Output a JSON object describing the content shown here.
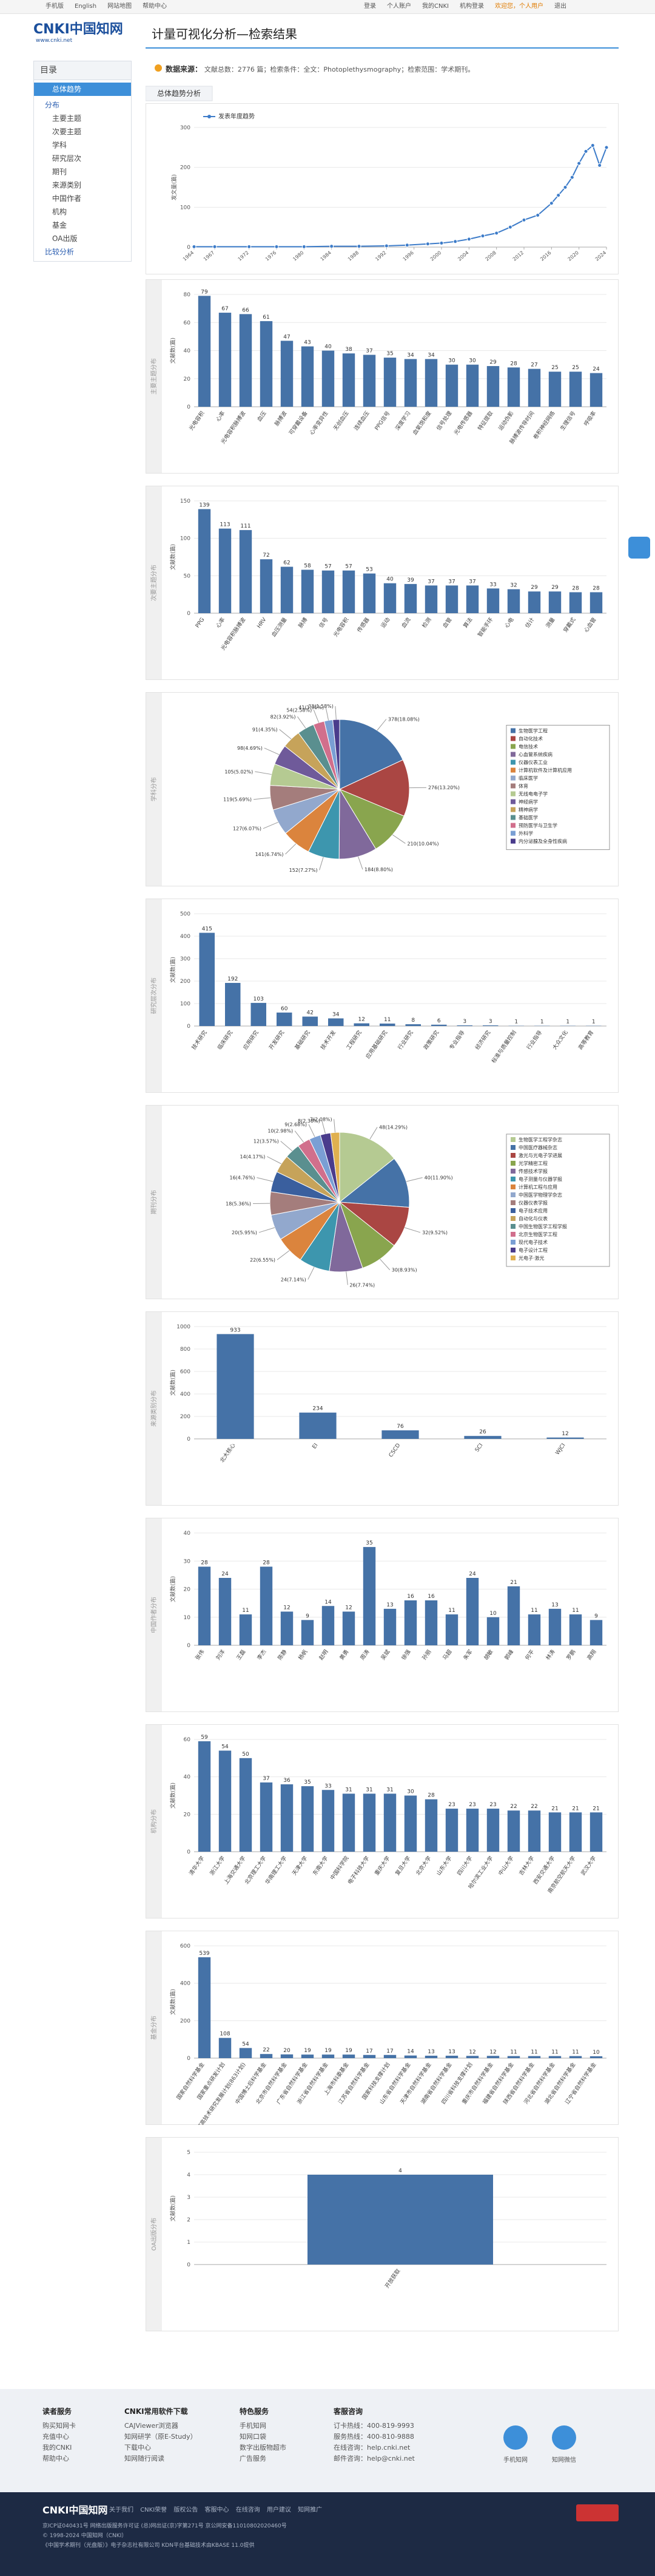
{
  "header": {
    "left_links": [
      "手机版",
      "English",
      "网站地图",
      "帮助中心"
    ],
    "right_links": [
      "登录",
      "个人账户",
      "我的CNKI",
      "机构登录",
      "欢迎您，个人用户",
      "退出"
    ],
    "logo": "CNKI中国知网",
    "logo_url": "www.cnki.net",
    "title": "计量可视化分析—检索结果"
  },
  "info": {
    "label": "数据来源：",
    "text": "文献总数：2776 篇；检索条件：全文：Photoplethysmography；检索范围：学术期刊。"
  },
  "sidebar": {
    "heading": "目录",
    "active": "总体趋势",
    "group": "分布",
    "items": [
      "主要主题",
      "次要主题",
      "学科",
      "研究层次",
      "期刊",
      "来源类别",
      "中国作者",
      "机构",
      "基金",
      "OA出版"
    ],
    "compare": "比较分析"
  },
  "chart_data": [
    {
      "type": "line",
      "title": "总体趋势分析",
      "y_label": "发文量(篇)",
      "series_name": "发表年度趋势",
      "color": "#3d7cc9",
      "x": [
        1964,
        1967,
        1972,
        1976,
        1980,
        1984,
        1988,
        1992,
        1995,
        1998,
        2000,
        2002,
        2004,
        2006,
        2008,
        2010,
        2012,
        2014,
        2016,
        2017,
        2018,
        2019,
        2020,
        2021,
        2022,
        2023,
        2024
      ],
      "values": [
        1,
        1,
        1,
        1,
        1,
        2,
        2,
        3,
        5,
        8,
        10,
        14,
        20,
        28,
        35,
        50,
        68,
        80,
        110,
        130,
        150,
        175,
        210,
        240,
        255,
        205,
        250
      ],
      "xlim": [
        1964,
        2024
      ],
      "xticks": [
        1964,
        1967,
        1972,
        1976,
        1980,
        1984,
        1988,
        1992,
        1996,
        2000,
        2004,
        2008,
        2012,
        2016,
        2020,
        2024
      ],
      "ylim": [
        0,
        300
      ],
      "yticks": [
        0,
        100,
        200,
        300
      ],
      "grid": true
    },
    {
      "type": "bar",
      "title": "主要主题分布",
      "y_label": "文献数(篇)",
      "color": "#4572a7",
      "categories": [
        "光电容积",
        "心率",
        "光电容积脉搏波",
        "血压",
        "脉搏波",
        "可穿戴设备",
        "心率变异性",
        "无创血压",
        "连续血压",
        "PPG信号",
        "深度学习",
        "血氧饱和度",
        "信号处理",
        "光电传感器",
        "特征提取",
        "运动伪影",
        "脉搏波传导时间",
        "卷积神经网络",
        "生理信号",
        "呼吸率"
      ],
      "values": [
        79,
        67,
        66,
        61,
        47,
        43,
        40,
        38,
        37,
        35,
        34,
        34,
        30,
        30,
        29,
        28,
        27,
        25,
        25,
        24
      ],
      "ylim": [
        0,
        80
      ],
      "yticks": [
        0,
        20,
        40,
        60,
        80
      ],
      "grid": true
    },
    {
      "type": "bar",
      "title": "次要主题分布",
      "y_label": "文献数(篇)",
      "color": "#4572a7",
      "categories": [
        "PPG",
        "心率",
        "光电容积脉搏波",
        "HRV",
        "血压测量",
        "脉搏",
        "信号",
        "光电容积",
        "传感器",
        "运动",
        "血流",
        "检测",
        "血管",
        "算法",
        "智能手环",
        "心电",
        "估计",
        "测量",
        "穿戴式",
        "心血管"
      ],
      "values": [
        139,
        113,
        111,
        72,
        62,
        58,
        57,
        57,
        53,
        40,
        39,
        37,
        37,
        37,
        33,
        32,
        29,
        29,
        28,
        28
      ],
      "ylim": [
        0,
        150
      ],
      "yticks": [
        0,
        50,
        100,
        150
      ],
      "grid": true
    },
    {
      "type": "pie",
      "title": "学科分布",
      "categories": [
        "生物医学工程",
        "自动化技术",
        "电信技术",
        "心血管系统疾病",
        "仪器仪表工业",
        "计算机软件及计算机应用",
        "临床医学",
        "体育",
        "无线电电子学",
        "神经病学",
        "精神病学",
        "基础医学",
        "预防医学与卫生学",
        "外科学",
        "内分泌腺及全身性疾病"
      ],
      "values": [
        378,
        276,
        210,
        184,
        152,
        141,
        127,
        119,
        105,
        98,
        91,
        82,
        54,
        41,
        33
      ],
      "value_labels": [
        "378(18.08%)",
        "276(13.20%)",
        "210(10.04%)",
        "184(8.80%)",
        "152(7.27%)",
        "141(6.74%)",
        "127(6.07%)",
        "119(5.69%)",
        "105(5.02%)",
        "98(4.69%)",
        "91(4.35%)",
        "82(3.92%)",
        "54(2.58%)",
        "41(1.96%)",
        "33(1.58%)"
      ],
      "colors": [
        "#4572a7",
        "#aa4643",
        "#89a54e",
        "#80699b",
        "#3d96ae",
        "#db843d",
        "#92a8cd",
        "#a47d7c",
        "#b5ca92",
        "#6f5a9a",
        "#c6a35a",
        "#5a8f8f",
        "#d16f8c",
        "#7a9fd4",
        "#4a3c8c"
      ]
    },
    {
      "type": "bar",
      "title": "研究层次分布",
      "y_label": "文献数(篇)",
      "color": "#4572a7",
      "categories": [
        "技术研究",
        "临床研究",
        "应用研究",
        "开发研究",
        "基础研究",
        "技术开发",
        "工程研究",
        "应用基础研究",
        "行业研究",
        "政策研究",
        "专业指导",
        "经济研究",
        "标准与质量控制",
        "行业指导",
        "大众文化",
        "高等教育"
      ],
      "values": [
        415,
        192,
        103,
        60,
        42,
        34,
        12,
        11,
        8,
        6,
        3,
        3,
        1,
        1,
        1,
        1
      ],
      "ylim": [
        0,
        500
      ],
      "yticks": [
        0,
        100,
        200,
        300,
        400,
        500
      ],
      "grid": true
    },
    {
      "type": "pie",
      "title": "期刊分布",
      "categories": [
        "生物医学工程学杂志",
        "中国医疗器械杂志",
        "激光与光电子学进展",
        "光学精密工程",
        "传感技术学报",
        "电子测量与仪器学报",
        "计算机工程与应用",
        "中国医学物理学杂志",
        "仪器仪表学报",
        "电子技术应用",
        "自动化与仪表",
        "中国生物医学工程学报",
        "北京生物医学工程",
        "现代电子技术",
        "电子设计工程",
        "光电子·激光"
      ],
      "values": [
        48,
        40,
        32,
        30,
        26,
        24,
        22,
        20,
        18,
        16,
        14,
        12,
        10,
        9,
        8,
        7
      ],
      "value_labels": [
        "48(14.29%)",
        "40(11.90%)",
        "32(9.52%)",
        "30(8.93%)",
        "26(7.74%)",
        "24(7.14%)",
        "22(6.55%)",
        "20(5.95%)",
        "18(5.36%)",
        "16(4.76%)",
        "14(4.17%)",
        "12(3.57%)",
        "10(2.98%)",
        "9(2.68%)",
        "8(2.38%)",
        "7(2.08%)"
      ],
      "colors": [
        "#b5ca92",
        "#4572a7",
        "#aa4643",
        "#89a54e",
        "#80699b",
        "#3d96ae",
        "#db843d",
        "#92a8cd",
        "#a47d7c",
        "#3a5f9e",
        "#c6a35a",
        "#5a8f8f",
        "#d16f8c",
        "#7a9fd4",
        "#4a3c8c",
        "#e0b050"
      ]
    },
    {
      "type": "bar",
      "title": "来源类别分布",
      "y_label": "文献数(篇)",
      "color": "#4572a7",
      "categories": [
        "北大核心",
        "EI",
        "CSCD",
        "SCI",
        "WJCI"
      ],
      "values": [
        933,
        234,
        76,
        26,
        12
      ],
      "ylim": [
        0,
        1000
      ],
      "yticks": [
        0,
        200,
        400,
        600,
        800,
        1000
      ],
      "grid": true
    },
    {
      "type": "bar",
      "title": "中国作者分布",
      "y_label": "文献数(篇)",
      "color": "#4572a7",
      "categories": [
        "张伟",
        "刘洋",
        "王磊",
        "李杰",
        "陈静",
        "杨帆",
        "赵明",
        "黄勇",
        "周涛",
        "吴斌",
        "徐强",
        "孙丽",
        "马超",
        "朱军",
        "胡敏",
        "郭峰",
        "何平",
        "林涛",
        "罗鹏",
        "高翔"
      ],
      "values": [
        28,
        24,
        11,
        28,
        12,
        9,
        14,
        12,
        35,
        13,
        16,
        16,
        11,
        24,
        10,
        21,
        11,
        13,
        11,
        9
      ],
      "ylim": [
        0,
        40
      ],
      "yticks": [
        0,
        10,
        20,
        30,
        40
      ],
      "grid": true
    },
    {
      "type": "bar",
      "title": "机构分布",
      "y_label": "文献数(篇)",
      "color": "#4572a7",
      "categories": [
        "清华大学",
        "浙江大学",
        "上海交通大学",
        "北京理工大学",
        "华南理工大学",
        "天津大学",
        "东南大学",
        "中国科学院",
        "电子科技大学",
        "重庆大学",
        "复旦大学",
        "北京大学",
        "山东大学",
        "四川大学",
        "哈尔滨工业大学",
        "中山大学",
        "吉林大学",
        "西安交通大学",
        "南京航空航天大学",
        "武汉大学"
      ],
      "values": [
        59,
        54,
        50,
        37,
        36,
        35,
        33,
        31,
        31,
        31,
        30,
        28,
        23,
        23,
        23,
        22,
        22,
        21,
        21,
        21
      ],
      "ylim": [
        0,
        60
      ],
      "yticks": [
        0,
        20,
        40,
        60
      ],
      "grid": true
    },
    {
      "type": "bar",
      "title": "基金分布",
      "y_label": "文献数(篇)",
      "color": "#4572a7",
      "categories": [
        "国家自然科学基金",
        "国家重点研发计划",
        "国家高技术研究发展计划(863计划)",
        "中国博士后科学基金",
        "北京市自然科学基金",
        "广东省自然科学基金",
        "浙江省自然科学基金",
        "上海市科委基金",
        "江苏省自然科学基金",
        "国家科技支撑计划",
        "山东省自然科学基金",
        "天津市自然科学基金",
        "湖南省自然科学基金",
        "四川省科技支撑计划",
        "重庆市自然科学基金",
        "福建省自然科学基金",
        "陕西省自然科学基金",
        "河北省自然科学基金",
        "湖北省自然科学基金",
        "辽宁省自然科学基金"
      ],
      "values": [
        539,
        108,
        54,
        22,
        20,
        19,
        19,
        19,
        17,
        17,
        14,
        13,
        13,
        12,
        12,
        11,
        11,
        11,
        11,
        10
      ],
      "ylim": [
        0,
        600
      ],
      "yticks": [
        0,
        200,
        400,
        600
      ],
      "grid": true
    },
    {
      "type": "bar",
      "title": "OA出版分布",
      "y_label": "文献数(篇)",
      "color": "#4572a7",
      "categories": [
        "开放获取"
      ],
      "values": [
        4
      ],
      "ylim": [
        0,
        5
      ],
      "yticks": [
        0,
        1,
        2,
        3,
        4,
        5
      ],
      "grid": true
    }
  ],
  "footer": {
    "columns": [
      {
        "heading": "读者服务",
        "items": [
          "购买知网卡",
          "充值中心",
          "我的CNKI",
          "帮助中心"
        ]
      },
      {
        "heading": "CNKI常用软件下载",
        "items": [
          "CAJViewer浏览器",
          "知网研学（原E-Study）",
          "下载中心",
          "知网随行阅读"
        ]
      },
      {
        "heading": "特色服务",
        "items": [
          "手机知网",
          "知网口袋",
          "数字出版物超市",
          "广告服务"
        ]
      },
      {
        "heading": "客服咨询",
        "items": [
          "订卡热线：400-819-9993",
          "服务热线：400-810-9888",
          "在线咨询：help.cnki.net",
          "邮件咨询：help@cnki.net"
        ]
      }
    ],
    "apps": [
      "手机知网",
      "知网微信"
    ],
    "links": [
      "关于我们",
      "CNKI荣誉",
      "版权公告",
      "客服中心",
      "在线咨询",
      "用户建议",
      "知网推广"
    ],
    "lines": [
      "京ICP证040431号 网络出版服务许可证 (总)网出证(京)字第271号 京公网安备11010802020460号",
      "© 1998-2024 中国知网（CNKI）",
      "《中国学术期刊（光盘版）》电子杂志社有限公司 KDN平台基础技术由KBASE 11.0提供"
    ]
  }
}
